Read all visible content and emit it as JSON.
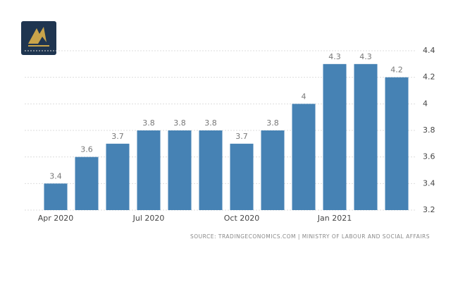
{
  "chart_data": {
    "type": "bar",
    "categories": [
      "Apr 2020",
      null,
      null,
      "Jul 2020",
      null,
      null,
      "Oct 2020",
      null,
      null,
      "Jan 2021",
      null,
      null
    ],
    "values": [
      3.4,
      3.6,
      3.7,
      3.8,
      3.8,
      3.8,
      3.7,
      3.8,
      4,
      4.3,
      4.3,
      4.2
    ],
    "color": "#4682b4",
    "ylim": [
      3.2,
      4.4
    ],
    "yticks": [
      3.2,
      3.4,
      3.6,
      3.8,
      4,
      4.2,
      4.4
    ],
    "grid": true,
    "source": "SOURCE: TRADINGECONOMICS.COM | MINISTRY OF LABOUR AND SOCIAL AFFAIRS"
  }
}
